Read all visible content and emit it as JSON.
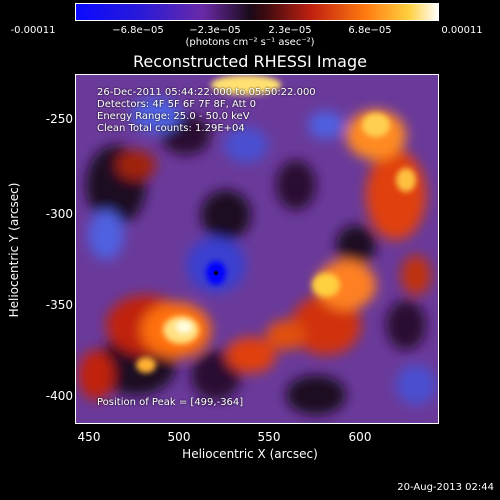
{
  "colorbar": {
    "ticks": [
      "-0.00011",
      "−6.8e−05",
      "−2.3e−05",
      "2.3e−05",
      "6.8e−05",
      "0.00011"
    ],
    "unit": "(photons cm⁻² s⁻¹ asec⁻²)"
  },
  "plot": {
    "title": "Reconstructed RHESSI Image",
    "info": {
      "time": "26-Dec-2011 05:44:22.000 to 05:50:22.000",
      "detectors": "Detectors: 4F 5F 6F 7F 8F, Att 0",
      "energy": "Energy Range: 25.0 - 50.0 keV",
      "clean": "Clean    Total counts: 1.29E+04",
      "peak": "Position of Peak = [499,-364]"
    },
    "xlabel": "Heliocentric X (arcsec)",
    "ylabel": "Heliocentric Y (arcsec)",
    "xticks": [
      "450",
      "500",
      "550",
      "600"
    ],
    "yticks": [
      "-250",
      "-300",
      "-350",
      "-400"
    ],
    "xlim": [
      443,
      635
    ],
    "ylim": [
      -417,
      -233
    ]
  },
  "timestamp": "20-Aug-2013 02:44",
  "colors": {
    "low": "#0000ff",
    "mid": "#7030a0",
    "high": "#ff8000",
    "peak": "#ffffe0"
  }
}
